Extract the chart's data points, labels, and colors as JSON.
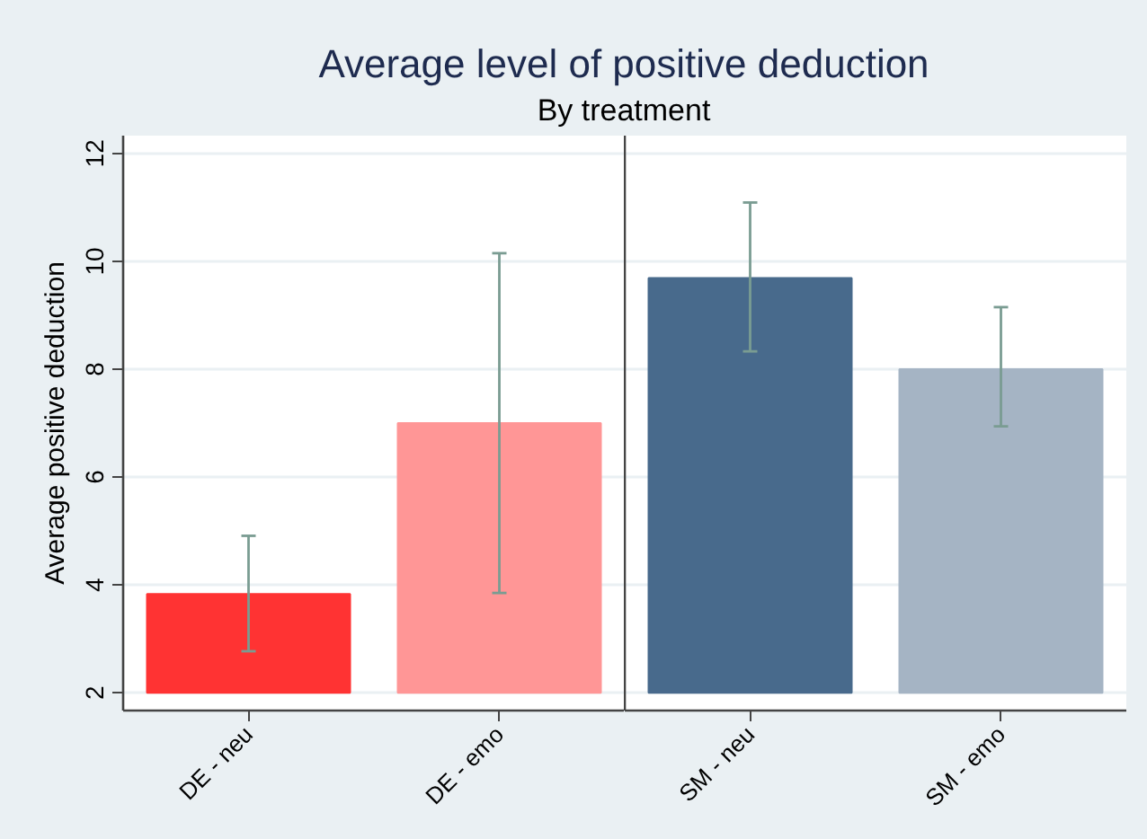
{
  "chart_data": [
    {
      "type": "bar",
      "title": "Average level of positive deduction",
      "subtitle": "By treatment",
      "ylabel": "Average positive deduction",
      "categories": [
        "DE - neu",
        "DE - emo"
      ],
      "base": [
        2,
        2
      ],
      "values": [
        1.83,
        5.0
      ],
      "errors": [
        [
          2.77,
          4.91
        ],
        [
          3.85,
          10.15
        ]
      ],
      "colors": [
        "#ff3333",
        "#ff9696"
      ],
      "ylim": [
        1.67,
        12.33
      ],
      "yticks": [
        2,
        4,
        6,
        8,
        10,
        12
      ],
      "grid": "y"
    },
    {
      "type": "bar",
      "categories": [
        "SM - neu",
        "SM - emo"
      ],
      "base": [
        2,
        2
      ],
      "values": [
        7.69,
        6.0
      ],
      "errors": [
        [
          8.33,
          11.09
        ],
        [
          6.94,
          9.15
        ]
      ],
      "colors": [
        "#486a8c",
        "#a5b4c4"
      ],
      "ylim": [
        1.67,
        12.33
      ],
      "yticks": [
        2,
        4,
        6,
        8,
        10,
        12
      ],
      "grid": "y",
      "tick_labels": "x"
    }
  ]
}
